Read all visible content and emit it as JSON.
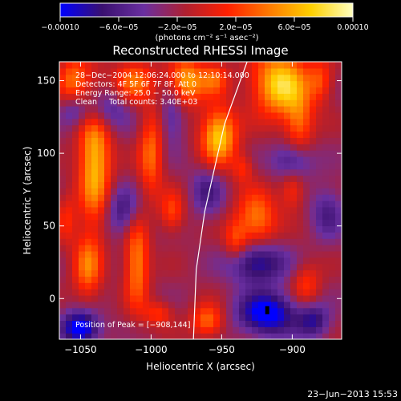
{
  "chart_data": {
    "type": "heatmap",
    "title": "Reconstructed RHESSI Image",
    "xlabel": "Heliocentric X (arcsec)",
    "ylabel": "Heliocentric Y (arcsec)",
    "xlim": [
      -1065,
      -865
    ],
    "ylim": [
      -28,
      163
    ],
    "x_ticks": [
      -1050,
      -1000,
      -950,
      -900
    ],
    "x_tick_labels": [
      "−1050",
      "−1000",
      "−950",
      "−900"
    ],
    "y_ticks": [
      0,
      50,
      100,
      150
    ],
    "y_tick_labels": [
      "0",
      "50",
      "100",
      "150"
    ],
    "colorbar": {
      "range": [
        -0.0001,
        0.0001
      ],
      "ticks": [
        -0.0001,
        -6e-05,
        -2e-05,
        2e-05,
        6e-05,
        0.0001
      ],
      "tick_labels": [
        "−0.00010",
        "−6.0e−05",
        "−2.0e−05",
        "2.0e−05",
        "6.0e−05",
        "0.00010"
      ],
      "unit_label": "(photons cm⁻² s⁻¹ asec⁻²)",
      "colors": [
        "#0000ff",
        "#3a1070",
        "#6a2fa0",
        "#b02030",
        "#ff2000",
        "#ff7a00",
        "#ffd000",
        "#ffffc0"
      ]
    },
    "annotations": {
      "time_range": "28−Dec−2004 12:06:24.000 to 12:10:14.000",
      "detectors": "Detectors: 4F 5F 6F 7F 8F, Att 0",
      "energy_range": "Energy Range: 25.0 − 50.0 keV",
      "method": "Clean     Total counts: 3.40E+03",
      "peak": "Position of Peak = [−908,144]"
    },
    "peak_position": [
      -908,
      144
    ],
    "limb_curve": [
      [
        -932,
        163
      ],
      [
        -948,
        120
      ],
      [
        -962,
        60
      ],
      [
        -968,
        20
      ],
      [
        -970,
        -28
      ]
    ],
    "blobs": [
      {
        "x": -908,
        "y": 148,
        "sx": 14,
        "sy": 16,
        "v": 1.0
      },
      {
        "x": -952,
        "y": 112,
        "sx": 9,
        "sy": 14,
        "v": 0.95
      },
      {
        "x": -1040,
        "y": 95,
        "sx": 8,
        "sy": 30,
        "v": 0.9
      },
      {
        "x": -1055,
        "y": 150,
        "sx": 8,
        "sy": 12,
        "v": 0.6
      },
      {
        "x": -1012,
        "y": 150,
        "sx": 10,
        "sy": 10,
        "v": 0.6
      },
      {
        "x": -975,
        "y": 150,
        "sx": 9,
        "sy": 11,
        "v": 0.8
      },
      {
        "x": -955,
        "y": 152,
        "sx": 7,
        "sy": 8,
        "v": 0.5
      },
      {
        "x": -1000,
        "y": 100,
        "sx": 6,
        "sy": 20,
        "v": 0.6
      },
      {
        "x": -1010,
        "y": 25,
        "sx": 6,
        "sy": 22,
        "v": 0.7
      },
      {
        "x": -1045,
        "y": 22,
        "sx": 7,
        "sy": 16,
        "v": 0.6
      },
      {
        "x": -925,
        "y": 55,
        "sx": 10,
        "sy": 14,
        "v": 0.65
      },
      {
        "x": -940,
        "y": 40,
        "sx": 6,
        "sy": 10,
        "v": 0.45
      },
      {
        "x": -895,
        "y": 120,
        "sx": 7,
        "sy": 14,
        "v": 0.5
      },
      {
        "x": -900,
        "y": 75,
        "sx": 6,
        "sy": 10,
        "v": 0.4
      },
      {
        "x": -960,
        "y": -15,
        "sx": 8,
        "sy": 8,
        "v": 0.6
      },
      {
        "x": -995,
        "y": -10,
        "sx": 7,
        "sy": 6,
        "v": 0.4
      },
      {
        "x": -890,
        "y": 10,
        "sx": 7,
        "sy": 10,
        "v": 0.4
      },
      {
        "x": -1060,
        "y": 55,
        "sx": 5,
        "sy": 12,
        "v": 0.35
      },
      {
        "x": -985,
        "y": 60,
        "sx": 6,
        "sy": 10,
        "v": 0.45
      },
      {
        "x": -880,
        "y": 150,
        "sx": 6,
        "sy": 10,
        "v": 0.4
      },
      {
        "x": -935,
        "y": 90,
        "sx": 5,
        "sy": 7,
        "v": 0.35
      },
      {
        "x": -1050,
        "y": -20,
        "sx": 9,
        "sy": 8,
        "v": -0.95
      },
      {
        "x": -918,
        "y": -10,
        "sx": 14,
        "sy": 10,
        "v": -0.9
      },
      {
        "x": -925,
        "y": 25,
        "sx": 14,
        "sy": 10,
        "v": -0.7
      },
      {
        "x": -1035,
        "y": 130,
        "sx": 12,
        "sy": 10,
        "v": -0.5
      },
      {
        "x": -900,
        "y": 95,
        "sx": 10,
        "sy": 9,
        "v": -0.5
      },
      {
        "x": -1020,
        "y": 60,
        "sx": 9,
        "sy": 12,
        "v": -0.45
      },
      {
        "x": -960,
        "y": 75,
        "sx": 8,
        "sy": 12,
        "v": -0.4
      },
      {
        "x": -985,
        "y": 125,
        "sx": 6,
        "sy": 14,
        "v": -0.35
      },
      {
        "x": -875,
        "y": 60,
        "sx": 8,
        "sy": 12,
        "v": -0.4
      },
      {
        "x": -1055,
        "y": 130,
        "sx": 7,
        "sy": 8,
        "v": -0.3
      },
      {
        "x": -885,
        "y": -15,
        "sx": 8,
        "sy": 8,
        "v": -0.55
      }
    ]
  },
  "footer": {
    "timestamp": "23−Jun−2013 15:53"
  }
}
